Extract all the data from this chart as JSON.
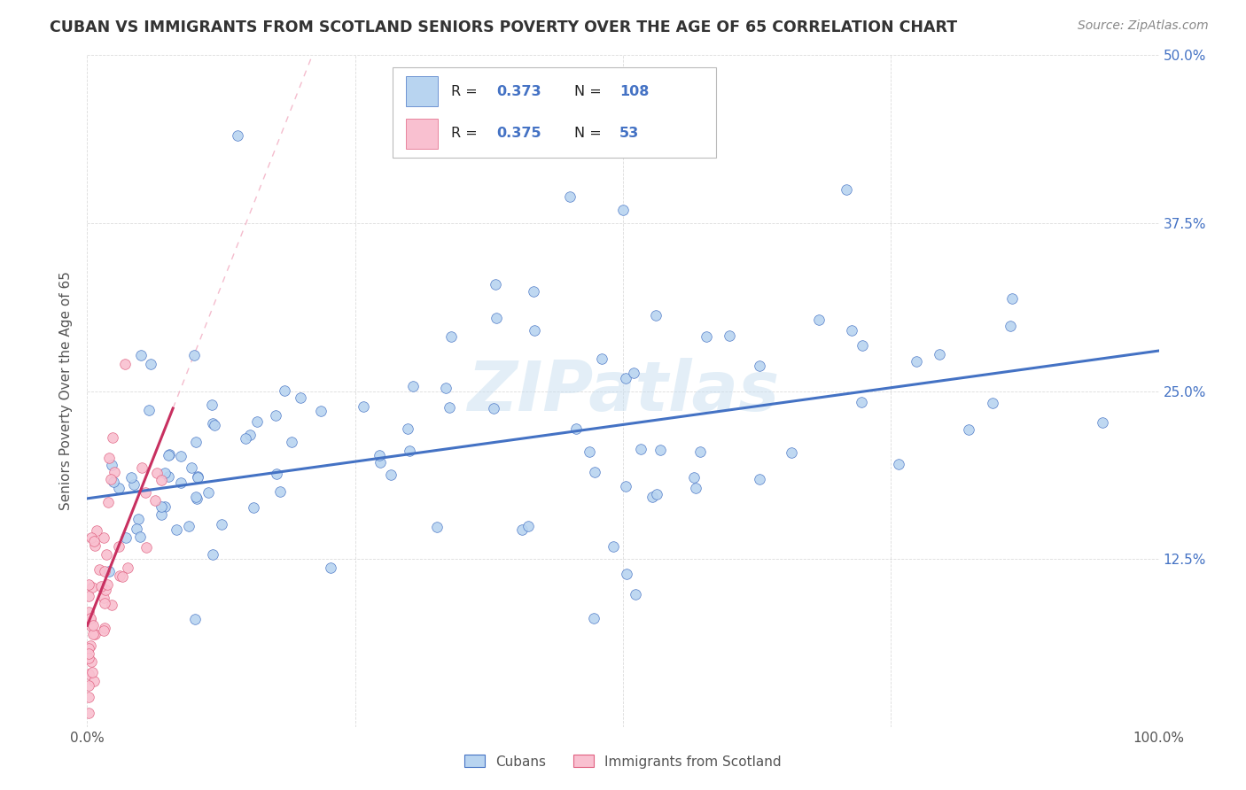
{
  "title": "CUBAN VS IMMIGRANTS FROM SCOTLAND SENIORS POVERTY OVER THE AGE OF 65 CORRELATION CHART",
  "source": "Source: ZipAtlas.com",
  "ylabel": "Seniors Poverty Over the Age of 65",
  "xlim": [
    0,
    1.0
  ],
  "ylim": [
    0,
    0.5
  ],
  "cubans_R": 0.373,
  "cubans_N": 108,
  "scotland_R": 0.375,
  "scotland_N": 53,
  "color_cubans_fill": "#b8d4f0",
  "color_cubans_edge": "#4472c4",
  "color_scotland_fill": "#f9c0d0",
  "color_scotland_edge": "#e06080",
  "color_line_cubans": "#4472c4",
  "color_line_scotland": "#c83060",
  "color_dashed_cubans": "#c0d8f0",
  "color_dashed_scotland": "#f0b0c0",
  "legend_cubans": "Cubans",
  "legend_scotland": "Immigrants from Scotland",
  "watermark": "ZIPatlas",
  "background_color": "#ffffff",
  "grid_color": "#cccccc",
  "right_tick_color": "#4472c4",
  "title_color": "#333333",
  "source_color": "#888888",
  "ylabel_color": "#555555"
}
